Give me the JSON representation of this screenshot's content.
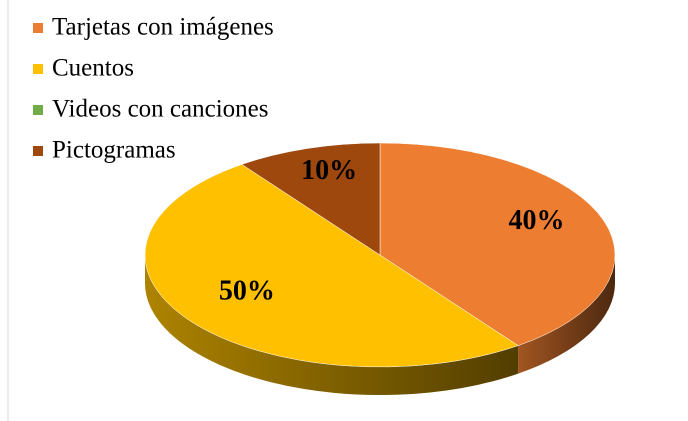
{
  "chart_data": {
    "type": "pie3d",
    "categories": [
      "Tarjetas con imágenes",
      "Cuentos",
      "Videos con canciones",
      "Pictogramas"
    ],
    "values": [
      40,
      50,
      0,
      10
    ],
    "value_labels": [
      "40%",
      "50%",
      null,
      "10%"
    ],
    "colors": [
      "#ED7D31",
      "#FFC000",
      "#70AD47",
      "#9E480E"
    ],
    "legend": "top-left"
  }
}
